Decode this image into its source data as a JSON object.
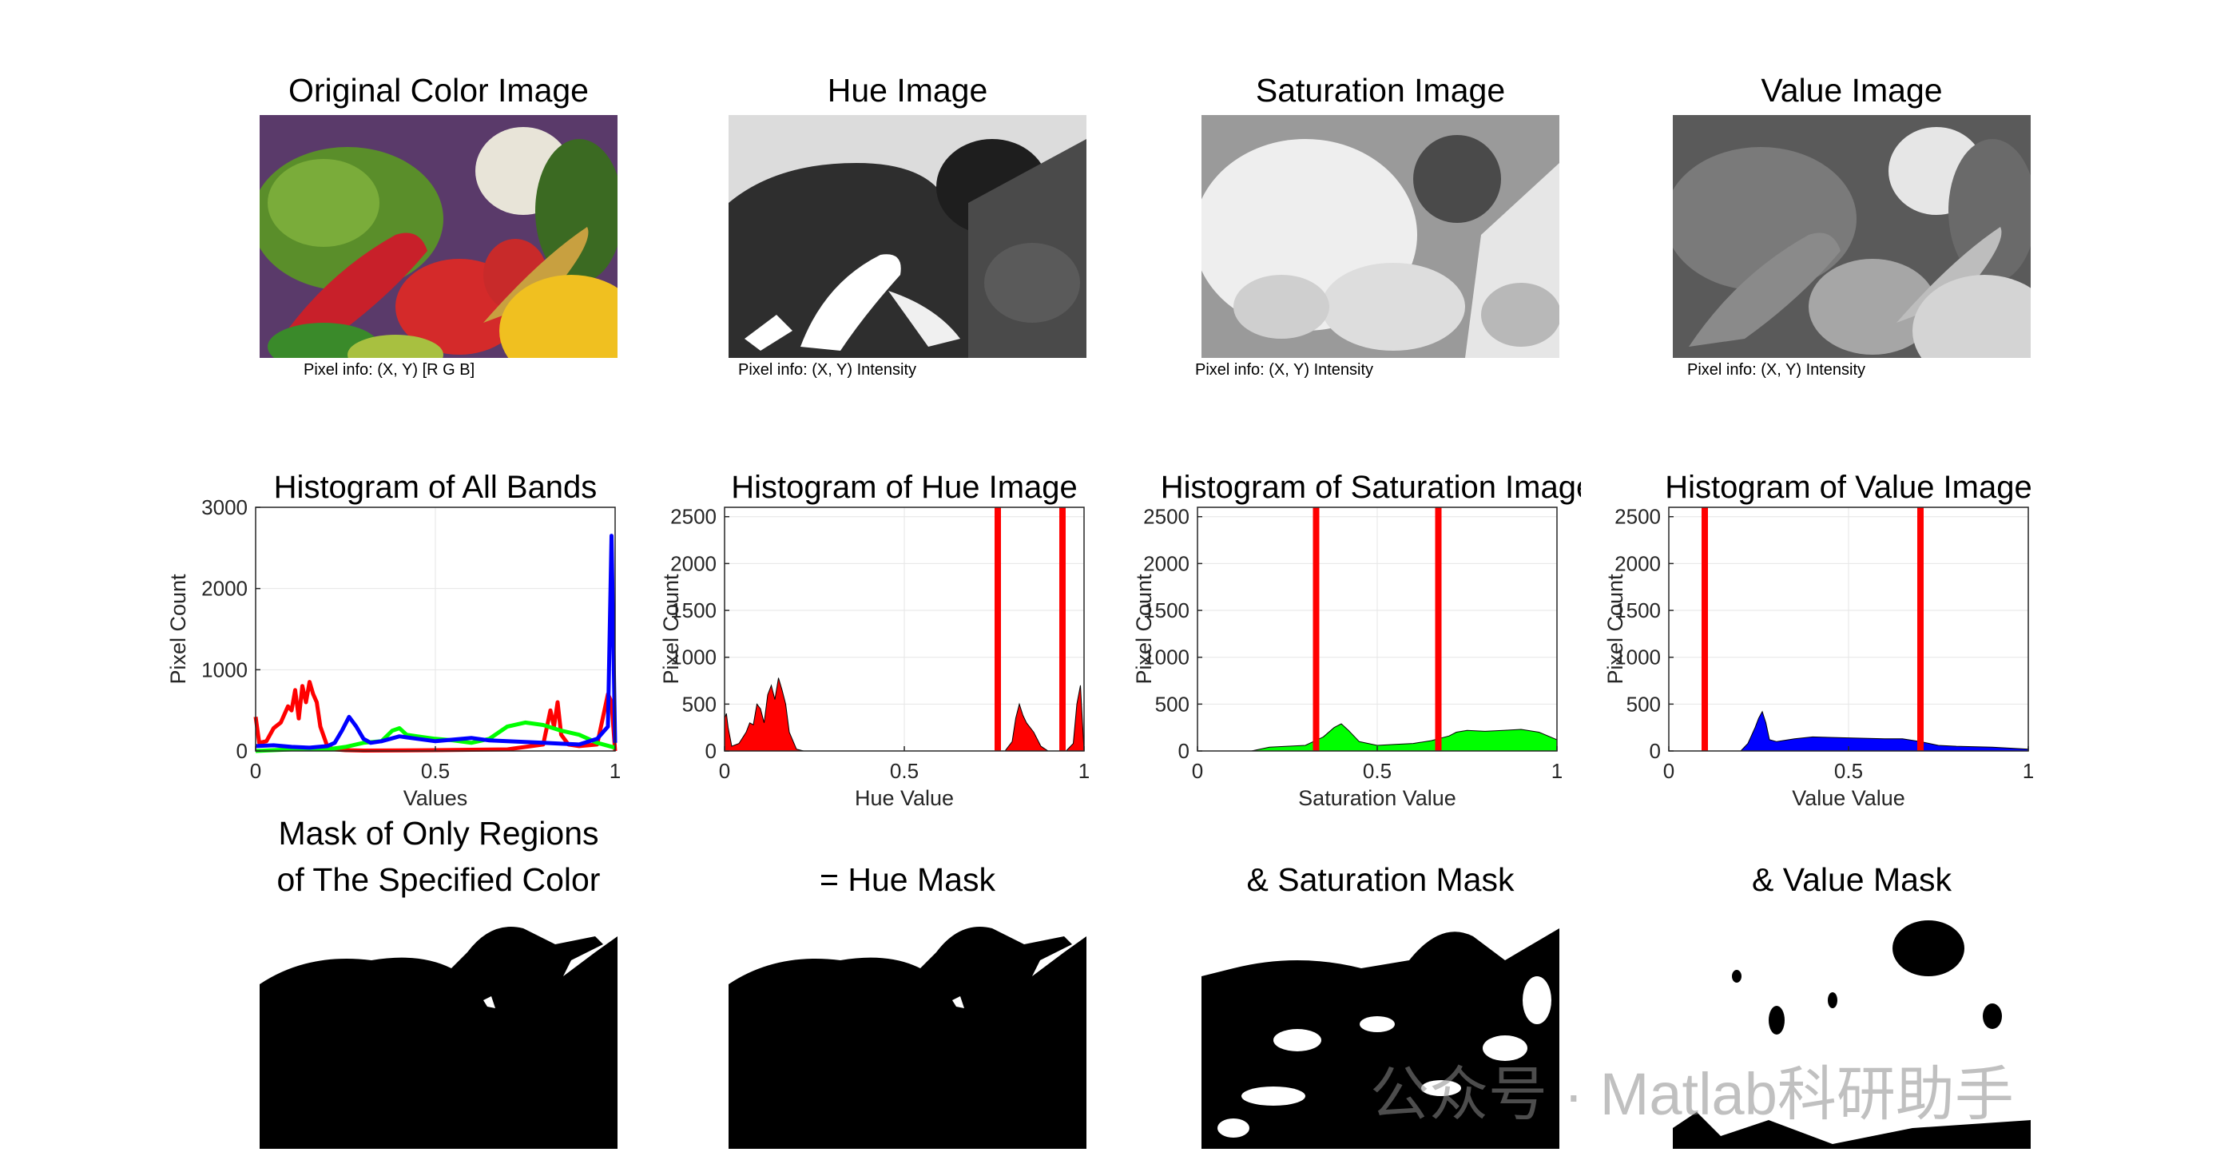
{
  "images": [
    {
      "title": "Original Color Image",
      "pixel_info": "Pixel info: (X, Y)  [R G B]"
    },
    {
      "title": "Hue Image",
      "pixel_info": "Pixel info: (X, Y)  Intensity"
    },
    {
      "title": "Saturation Image",
      "pixel_info": "Pixel info: (X, Y)  Intensity"
    },
    {
      "title": "Value Image",
      "pixel_info": "Pixel info: (X, Y)  Intensity"
    }
  ],
  "masks": [
    {
      "title_line1": "Mask of Only Regions",
      "title_line2": "of The Specified Color"
    },
    {
      "title_line1": "",
      "title_line2": "=   Hue Mask"
    },
    {
      "title_line1": "",
      "title_line2": "&   Saturation Mask"
    },
    {
      "title_line1": "",
      "title_line2": "&   Value Mask"
    }
  ],
  "watermark": "公众号 · Matlab科研助手",
  "colors": {
    "red": "#ff0000",
    "green": "#00ff00",
    "blue": "#0000ff",
    "threshold": "#ff0000"
  },
  "chart_data": [
    {
      "type": "line",
      "title": "Histogram of All Bands",
      "xlabel": "Values",
      "ylabel": "Pixel Count",
      "xlim": [
        0,
        1
      ],
      "ylim": [
        0,
        3000
      ],
      "xticks": [
        "0",
        "0.5",
        "1"
      ],
      "yticks": [
        "0",
        "1000",
        "2000",
        "3000"
      ],
      "grid": true,
      "series": [
        {
          "color": "#ff0000",
          "x": [
            0,
            0.01,
            0.03,
            0.05,
            0.07,
            0.09,
            0.1,
            0.11,
            0.12,
            0.13,
            0.14,
            0.15,
            0.16,
            0.17,
            0.18,
            0.2,
            0.22,
            0.25,
            0.3,
            0.5,
            0.7,
            0.8,
            0.82,
            0.83,
            0.84,
            0.85,
            0.87,
            0.9,
            0.95,
            0.98,
            0.99,
            1.0
          ],
          "y": [
            420,
            100,
            120,
            280,
            350,
            550,
            500,
            750,
            400,
            800,
            600,
            850,
            700,
            600,
            300,
            50,
            20,
            10,
            5,
            10,
            20,
            80,
            500,
            300,
            600,
            200,
            80,
            60,
            80,
            700,
            600,
            0
          ]
        },
        {
          "color": "#00ff00",
          "x": [
            0,
            0.05,
            0.1,
            0.15,
            0.2,
            0.25,
            0.3,
            0.35,
            0.38,
            0.4,
            0.42,
            0.45,
            0.5,
            0.55,
            0.6,
            0.65,
            0.7,
            0.75,
            0.8,
            0.85,
            0.9,
            0.95,
            1.0
          ],
          "y": [
            0,
            10,
            20,
            20,
            20,
            50,
            100,
            120,
            250,
            280,
            200,
            180,
            150,
            130,
            100,
            150,
            300,
            350,
            320,
            250,
            200,
            100,
            40
          ]
        },
        {
          "color": "#0000ff",
          "x": [
            0,
            0.05,
            0.1,
            0.15,
            0.2,
            0.22,
            0.24,
            0.26,
            0.28,
            0.3,
            0.32,
            0.35,
            0.4,
            0.45,
            0.5,
            0.55,
            0.6,
            0.65,
            0.7,
            0.75,
            0.8,
            0.85,
            0.9,
            0.95,
            0.98,
            0.99,
            1.0
          ],
          "y": [
            60,
            70,
            50,
            40,
            60,
            100,
            250,
            420,
            300,
            150,
            100,
            120,
            180,
            150,
            120,
            140,
            160,
            130,
            120,
            110,
            100,
            90,
            80,
            150,
            300,
            2650,
            100
          ]
        }
      ]
    },
    {
      "type": "area",
      "title": "Histogram of Hue Image",
      "xlabel": "Hue Value",
      "ylabel": "Pixel Count",
      "xlim": [
        0,
        1
      ],
      "ylim": [
        0,
        2600
      ],
      "xticks": [
        "0",
        "0.5",
        "1"
      ],
      "yticks": [
        "0",
        "500",
        "1000",
        "1500",
        "2000",
        "2500"
      ],
      "grid": true,
      "thresholds": [
        0.76,
        0.94
      ],
      "series": [
        {
          "color": "#ff0000",
          "x": [
            0,
            0.005,
            0.01,
            0.02,
            0.04,
            0.06,
            0.07,
            0.08,
            0.09,
            0.1,
            0.11,
            0.12,
            0.13,
            0.14,
            0.15,
            0.16,
            0.17,
            0.18,
            0.2,
            0.22,
            0.78,
            0.8,
            0.81,
            0.82,
            0.83,
            0.84,
            0.86,
            0.88,
            0.9,
            0.95,
            0.97,
            0.98,
            0.99,
            1.0
          ],
          "y": [
            350,
            400,
            250,
            50,
            80,
            200,
            300,
            280,
            500,
            450,
            300,
            600,
            700,
            550,
            780,
            650,
            500,
            200,
            20,
            0,
            0,
            100,
            350,
            500,
            380,
            300,
            200,
            50,
            0,
            0,
            80,
            500,
            700,
            0
          ]
        }
      ]
    },
    {
      "type": "area",
      "title": "Histogram of Saturation Image",
      "xlabel": "Saturation Value",
      "ylabel": "Pixel Count",
      "xlim": [
        0,
        1
      ],
      "ylim": [
        0,
        2600
      ],
      "xticks": [
        "0",
        "0.5",
        "1"
      ],
      "yticks": [
        "0",
        "500",
        "1000",
        "1500",
        "2000",
        "2500"
      ],
      "grid": true,
      "thresholds": [
        0.33,
        0.67
      ],
      "series": [
        {
          "color": "#00ff00",
          "x": [
            0,
            0.15,
            0.2,
            0.25,
            0.3,
            0.35,
            0.38,
            0.4,
            0.42,
            0.45,
            0.5,
            0.55,
            0.6,
            0.65,
            0.7,
            0.72,
            0.75,
            0.8,
            0.85,
            0.9,
            0.95,
            1.0
          ],
          "y": [
            0,
            0,
            40,
            50,
            60,
            150,
            250,
            290,
            220,
            100,
            60,
            70,
            80,
            110,
            160,
            200,
            220,
            210,
            220,
            230,
            200,
            120
          ]
        }
      ]
    },
    {
      "type": "area",
      "title": "Histogram of Value Image",
      "xlabel": "Value Value",
      "ylabel": "Pixel Count",
      "xlim": [
        0,
        1
      ],
      "ylim": [
        0,
        2600
      ],
      "xticks": [
        "0",
        "0.5",
        "1"
      ],
      "yticks": [
        "0",
        "500",
        "1000",
        "1500",
        "2000",
        "2500"
      ],
      "grid": true,
      "thresholds": [
        0.1,
        0.7
      ],
      "series": [
        {
          "color": "#0000ff",
          "x": [
            0,
            0.2,
            0.22,
            0.24,
            0.25,
            0.26,
            0.27,
            0.28,
            0.3,
            0.35,
            0.4,
            0.5,
            0.6,
            0.65,
            0.7,
            0.75,
            0.8,
            0.9,
            1.0
          ],
          "y": [
            0,
            0,
            80,
            250,
            350,
            420,
            300,
            120,
            100,
            130,
            150,
            140,
            130,
            130,
            100,
            60,
            50,
            40,
            20
          ]
        }
      ]
    }
  ]
}
